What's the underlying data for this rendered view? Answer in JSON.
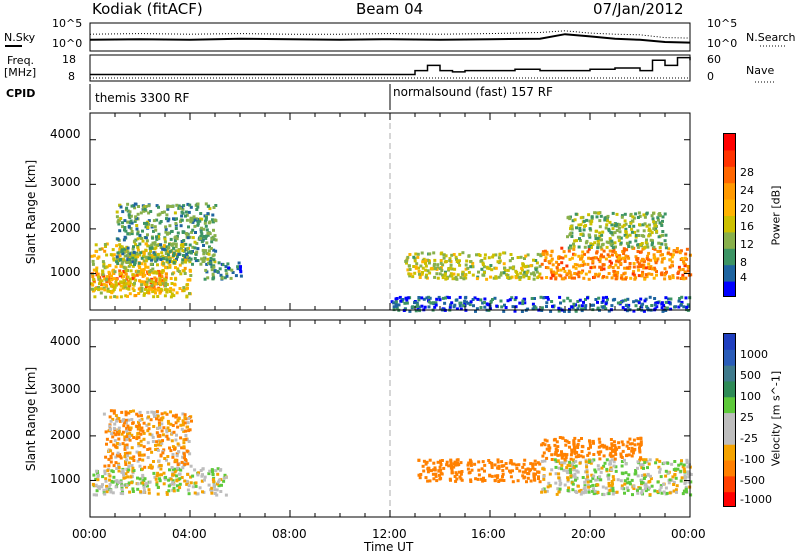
{
  "header": {
    "radar": "Kodiak (fitACF)",
    "beam": "Beam 04",
    "date": "07/Jan/2012"
  },
  "summary_panel": {
    "nsky_label": "N.Sky",
    "nsearch_label": "N.Search",
    "freq_label": "Freq.",
    "freq_unit": "[MHz]",
    "nave_label": "Nave",
    "cpid_label": "CPID",
    "noise_ticks_left": [
      "10^5",
      "10^0"
    ],
    "noise_ticks_right": [
      "10^5",
      "10^0"
    ],
    "freq_ticks": [
      "18",
      "8"
    ],
    "nave_ticks": [
      "60",
      "0"
    ],
    "modes": [
      {
        "label": "themis 3300 RF",
        "start_hr": 0
      },
      {
        "label": "normalsound (fast) 157 RF",
        "start_hr": 12
      }
    ]
  },
  "axes": {
    "ylabel": "Slant Range [km]",
    "xlabel": "Time UT",
    "yticks": [
      "4000",
      "3000",
      "2000",
      "1000"
    ],
    "xticks": [
      "00:00",
      "04:00",
      "08:00",
      "12:00",
      "16:00",
      "20:00",
      "00:00"
    ]
  },
  "power_colorbar": {
    "label": "Power [dB]",
    "ticks": [
      "28",
      "24",
      "20",
      "16",
      "12",
      "8",
      "4"
    ],
    "colors": [
      "#ff0000",
      "#ff3300",
      "#ff6600",
      "#ff9900",
      "#ffb300",
      "#ccc000",
      "#88b04b",
      "#3c9464",
      "#1e64a0",
      "#0000ff"
    ]
  },
  "velocity_colorbar": {
    "label": "Velocity [m s^-1]",
    "ticks": [
      "1000",
      "500",
      "100",
      "25",
      "-25",
      "-100",
      "-500",
      "-1000"
    ],
    "colors": [
      "#1f3fbf",
      "#2a5cb8",
      "#3f7a8c",
      "#2e8b57",
      "#5dc93a",
      "#bdbdbd",
      "#bdbdbd",
      "#f4a300",
      "#ff8000",
      "#ff4000",
      "#ff0000"
    ]
  },
  "chart_data": [
    {
      "type": "line",
      "title": "N.Sky / N.Search",
      "x_hours": [
        0,
        2,
        4,
        6,
        8,
        10,
        12,
        14,
        16,
        18,
        19,
        20,
        21,
        22,
        23,
        24
      ],
      "series": [
        {
          "name": "N.Sky",
          "values": [
            2.0,
            2.1,
            2.0,
            2.2,
            2.1,
            2.0,
            2.1,
            2.0,
            2.1,
            2.2,
            3.0,
            2.6,
            2.2,
            2.0,
            1.6,
            1.5
          ]
        },
        {
          "name": "N.Search",
          "values": [
            3.0,
            3.1,
            3.0,
            3.1,
            3.0,
            3.0,
            3.1,
            3.0,
            3.1,
            3.3,
            3.6,
            3.2,
            3.0,
            2.9,
            2.4,
            2.3
          ]
        }
      ],
      "ylim": [
        0,
        5
      ]
    },
    {
      "type": "line",
      "title": "Freq. / Nave",
      "x_hours": [
        0,
        12,
        13,
        13.5,
        14,
        14.5,
        15,
        16,
        17,
        18,
        19,
        20,
        21,
        22,
        22.5,
        23,
        23.5,
        24
      ],
      "series": [
        {
          "name": "Freq.",
          "values": [
            10.5,
            10.5,
            12,
            14,
            12,
            11.5,
            12,
            12,
            12.5,
            12,
            12,
            12.5,
            13,
            12,
            16,
            14,
            17,
            16
          ]
        }
      ],
      "ylim": [
        8,
        18
      ]
    },
    {
      "type": "heatmap",
      "title": "Power [dB]",
      "xlabel": "Time UT",
      "ylabel": "Slant Range [km]",
      "xlim": [
        0,
        24
      ],
      "ylim": [
        180,
        4600
      ],
      "regions": [
        {
          "t": [
            0.0,
            3.0
          ],
          "r": [
            700,
            1100
          ],
          "value_db": 24
        },
        {
          "t": [
            0.0,
            4.0
          ],
          "r": [
            500,
            1700
          ],
          "value_db": 16
        },
        {
          "t": [
            1.0,
            5.0
          ],
          "r": [
            1200,
            2600
          ],
          "value_db": 10
        },
        {
          "t": [
            4.5,
            6.0
          ],
          "r": [
            900,
            1300
          ],
          "value_db": 8
        },
        {
          "t": [
            12.5,
            18.0
          ],
          "r": [
            900,
            1500
          ],
          "value_db": 14
        },
        {
          "t": [
            18.0,
            24.0
          ],
          "r": [
            900,
            1600
          ],
          "value_db": 22
        },
        {
          "t": [
            19.0,
            23.0
          ],
          "r": [
            1600,
            2400
          ],
          "value_db": 12
        },
        {
          "t": [
            12.0,
            24.0
          ],
          "r": [
            180,
            500
          ],
          "value_db": 6
        }
      ]
    },
    {
      "type": "heatmap",
      "title": "Velocity [m s^-1]",
      "xlabel": "Time UT",
      "ylabel": "Slant Range [km]",
      "xlim": [
        0,
        24
      ],
      "ylim": [
        180,
        4600
      ],
      "regions": [
        {
          "t": [
            0.0,
            5.5
          ],
          "r": [
            700,
            1300
          ],
          "value_ms": 0
        },
        {
          "t": [
            0.5,
            4.0
          ],
          "r": [
            1300,
            2600
          ],
          "value_ms": -50
        },
        {
          "t": [
            13.0,
            18.0
          ],
          "r": [
            1000,
            1500
          ],
          "value_ms": -150
        },
        {
          "t": [
            18.0,
            24.0
          ],
          "r": [
            700,
            1500
          ],
          "value_ms": 0
        },
        {
          "t": [
            18.0,
            22.0
          ],
          "r": [
            1500,
            2000
          ],
          "value_ms": -120
        }
      ]
    }
  ]
}
